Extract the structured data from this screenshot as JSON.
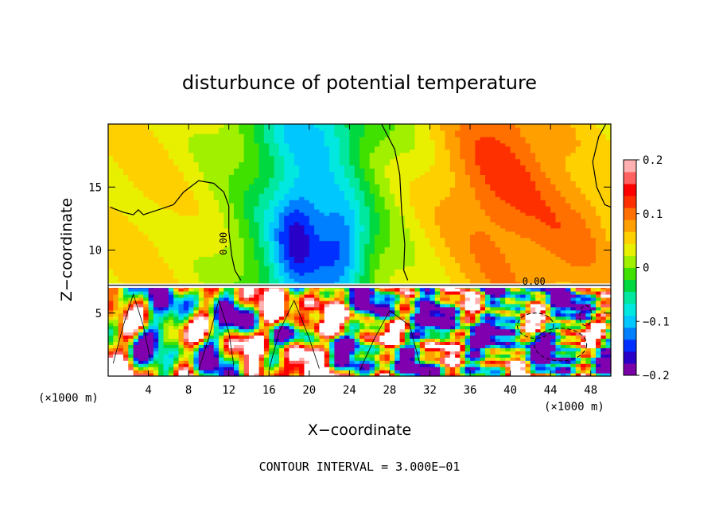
{
  "chart_data": {
    "type": "heatmap",
    "title": "disturbunce of potential temperature",
    "xlabel": "X−coordinate",
    "ylabel": "Z−coordinate",
    "x_unit_label": "(×1000 m)",
    "z_unit_label": "(×1000 m)",
    "xlim": [
      0,
      50
    ],
    "ylim": [
      0,
      20
    ],
    "x_ticks": [
      4,
      8,
      12,
      16,
      20,
      24,
      28,
      32,
      36,
      40,
      44,
      48
    ],
    "y_ticks": [
      5,
      10,
      15
    ],
    "colorbar": {
      "min": -0.2,
      "max": 0.2,
      "tick_values": [
        0.2,
        0.1,
        0,
        -0.1,
        -0.2
      ],
      "tick_labels": [
        "0.2",
        "0.1",
        "0",
        "−0.1",
        "−0.2"
      ],
      "colors": [
        "#7a00a8",
        "#2800c8",
        "#0030ff",
        "#0080ff",
        "#00c8ff",
        "#00e8e0",
        "#00e8a0",
        "#00d840",
        "#40e000",
        "#a0f000",
        "#e8f000",
        "#ffd000",
        "#ffa000",
        "#ff7000",
        "#ff3000",
        "#ff0000",
        "#ff6060",
        "#ffb0b0"
      ]
    },
    "contour_label": "0.00",
    "contour_interval_text": "CONTOUR INTERVAL = 3.000E−01",
    "tropopause_z": 7.2
  }
}
